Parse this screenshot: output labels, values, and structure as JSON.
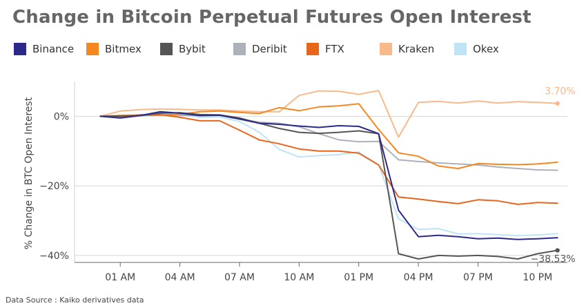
{
  "page": {
    "title": "Change in Bitcoin Perpetual Futures Open Interest",
    "source": "Data Source : Kaiko derivatives data"
  },
  "chart_data": {
    "type": "line",
    "title": "Change in Bitcoin Perpetual Futures Open Interest",
    "xlabel": "",
    "ylabel": "% Change in BTC Open Interest",
    "ylim": [
      -42,
      10
    ],
    "xlim": [
      -1.3,
      23.5
    ],
    "yticks": [
      0,
      -20,
      -40
    ],
    "ytick_labels": [
      "0%",
      "−20%",
      "−40%"
    ],
    "xticks": [
      1,
      4,
      7,
      10,
      13,
      16,
      19,
      22
    ],
    "xtick_labels": [
      "01 AM",
      "04 AM",
      "07 AM",
      "10 AM",
      "01 PM",
      "04 PM",
      "07 PM",
      "10 PM"
    ],
    "grid": "horizontal",
    "legend_position": "top",
    "x": [
      0,
      1,
      2,
      3,
      4,
      5,
      6,
      7,
      8,
      9,
      10,
      11,
      12,
      13,
      14,
      15,
      16,
      17,
      18,
      19,
      20,
      21,
      22,
      23
    ],
    "series": [
      {
        "name": "Binance",
        "color": "#2b2a8a",
        "values": [
          0,
          -0.5,
          0.2,
          1.3,
          0.9,
          0.2,
          0.3,
          -0.8,
          -2.0,
          -2.3,
          -2.8,
          -3.2,
          -2.7,
          -2.9,
          -5.0,
          -27.0,
          -34.6,
          -34.2,
          -34.6,
          -35.2,
          -35.0,
          -35.4,
          -35.2,
          -34.9
        ]
      },
      {
        "name": "Bitmex",
        "color": "#f5871f",
        "values": [
          0,
          0.2,
          0.3,
          0.3,
          0.6,
          1.3,
          1.5,
          1.1,
          0.8,
          2.5,
          1.6,
          2.7,
          3.0,
          3.6,
          -3.8,
          -10.5,
          -11.5,
          -14.3,
          -15.0,
          -13.6,
          -13.8,
          -13.9,
          -13.7,
          -13.2
        ]
      },
      {
        "name": "Bybit",
        "color": "#555555",
        "values": [
          0,
          0.1,
          0.2,
          0.9,
          1.0,
          0.5,
          0.4,
          -0.5,
          -2.0,
          -3.5,
          -4.6,
          -4.9,
          -4.6,
          -4.2,
          -5.0,
          -39.5,
          -41.0,
          -40.0,
          -40.2,
          -40.0,
          -40.3,
          -41.0,
          -39.5,
          -38.53
        ]
      },
      {
        "name": "Deribit",
        "color": "#adb1ba",
        "values": [
          0,
          0.1,
          0.2,
          0.4,
          0.3,
          0.2,
          0.3,
          -0.8,
          -1.7,
          -2.0,
          -3.0,
          -5.0,
          -6.8,
          -7.3,
          -7.2,
          -12.5,
          -13.0,
          -13.4,
          -13.7,
          -14.0,
          -14.6,
          -15.0,
          -15.4,
          -15.5
        ]
      },
      {
        "name": "FTX",
        "color": "#e8651c",
        "values": [
          0,
          -0.2,
          0.4,
          0.5,
          -0.3,
          -1.3,
          -1.3,
          -4.0,
          -6.8,
          -7.9,
          -9.4,
          -10.0,
          -10.0,
          -10.6,
          -14.0,
          -23.2,
          -23.8,
          -24.5,
          -25.1,
          -24.0,
          -24.3,
          -25.3,
          -24.8,
          -25.0
        ]
      },
      {
        "name": "Kraken",
        "color": "#f9b98a",
        "values": [
          0,
          1.5,
          1.9,
          2.1,
          2.0,
          1.8,
          1.8,
          1.5,
          1.3,
          1.3,
          6.0,
          7.3,
          7.2,
          6.3,
          7.4,
          -6.0,
          4.0,
          4.3,
          3.8,
          4.4,
          3.8,
          4.2,
          4.0,
          3.7
        ]
      },
      {
        "name": "Okex",
        "color": "#bfe4f5",
        "values": [
          0,
          0.3,
          0.5,
          0.7,
          0.6,
          -0.3,
          -0.2,
          -1.5,
          -4.6,
          -9.5,
          -11.7,
          -11.3,
          -11.0,
          -10.3,
          -14.0,
          -29.5,
          -32.5,
          -32.3,
          -33.8,
          -33.7,
          -34.0,
          -34.3,
          -34.1,
          -33.7
        ]
      }
    ],
    "end_labels": [
      {
        "series": "Kraken",
        "text": "3.70%",
        "color": "#f9b98a"
      },
      {
        "series": "Bybit",
        "text": "−38.53%",
        "color": "#555555"
      }
    ]
  }
}
